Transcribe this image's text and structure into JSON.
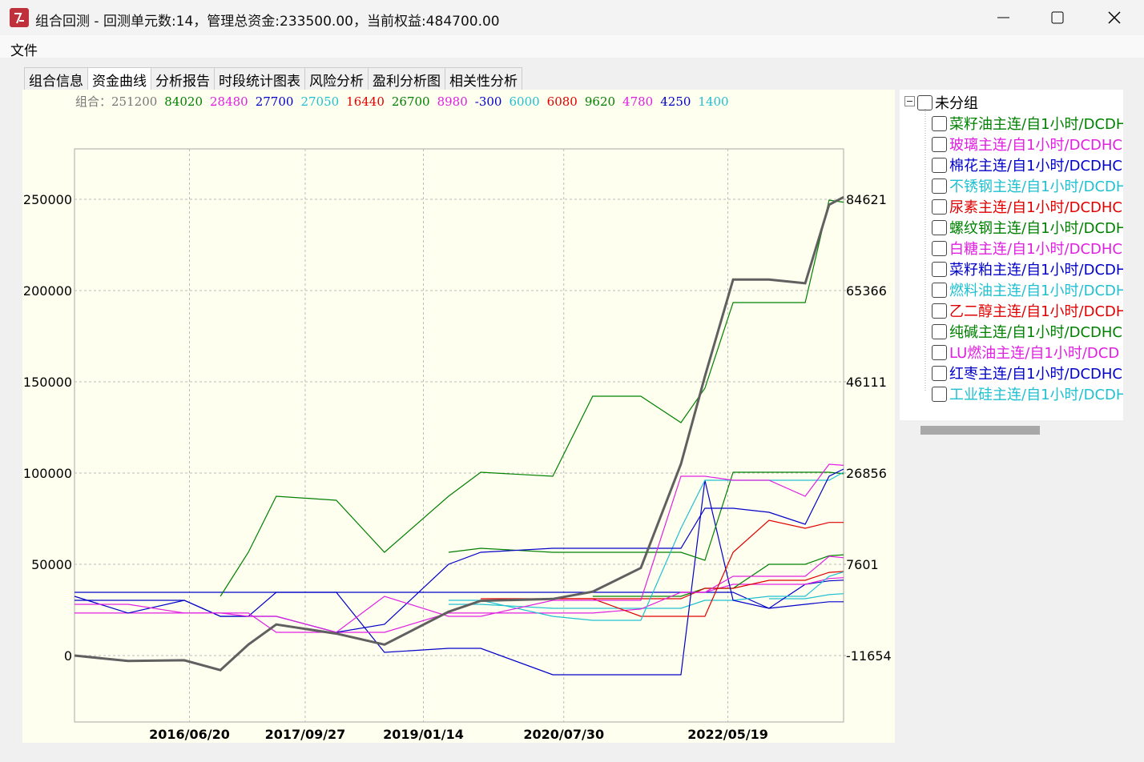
{
  "window": {
    "title": "组合回测 - 回测单元数:14，管理总资金:233500.00，当前权益:484700.00"
  },
  "menu": [
    "文件"
  ],
  "tabs": [
    "组合信息",
    "资金曲线",
    "分析报告",
    "时段统计图表",
    "风险分析",
    "盈利分析图",
    "相关性分析"
  ],
  "tree": {
    "root": "未分组"
  },
  "chart_data": {
    "type": "line",
    "summary_label": "组合：",
    "summary_values": [
      251200,
      84020,
      28480,
      27700,
      27050,
      16440,
      26700,
      8980,
      -300,
      6000,
      6080,
      9620,
      4780,
      4250,
      1400
    ],
    "x": [
      "2015/03/17",
      "2015/10/18",
      "2016/05/30",
      "2016/10/22",
      "2017/02/11",
      "2017/06/03",
      "2018/01/30",
      "2018/08/11",
      "2019/04/25",
      "2019/09/01",
      "2020/06/16",
      "2020/11/23",
      "2021/06/04",
      "2021/11/12",
      "2022/02/16",
      "2022/06/09",
      "2022/10/31",
      "2023/03/25",
      "2023/06/29",
      "2023/08/26"
    ],
    "xlim": [
      "2015/03/17",
      "2023/08/26"
    ],
    "xticks": [
      "2016/06/20",
      "2017/09/27",
      "2019/01/14",
      "2020/07/30",
      "2022/05/19"
    ],
    "ylim": [
      -36404,
      277632
    ],
    "yticks": [
      0,
      50000,
      100000,
      150000,
      200000,
      250000
    ],
    "y2lim": [
      -25673,
      95265
    ],
    "y2ticks": [
      -11654,
      7601,
      26856,
      46111,
      65366,
      84621
    ],
    "grid": true,
    "series": [
      {
        "name": "组合",
        "color": "#606060",
        "values": [
          0,
          -3000,
          -2600,
          -8000,
          6000,
          17000,
          12000,
          6000,
          24000,
          30000,
          31000,
          35000,
          48000,
          105000,
          153000,
          206000,
          206000,
          204000,
          247000,
          251200
        ]
      },
      {
        "name": "菜籽油主连/自1小时/DCDH",
        "color": "#008000",
        "axis": "y2",
        "values": [
          null,
          null,
          null,
          846,
          10134,
          21957,
          21112,
          10134,
          21957,
          27024,
          26180,
          43070,
          43070,
          37496,
          44760,
          62832,
          62832,
          62832,
          84452,
          84020
        ]
      },
      {
        "name": "玻璃主连/自1小时/DCDHC",
        "color": "#e020e0",
        "axis": "y2",
        "values": [
          -845,
          -845,
          -2689,
          -2689,
          -3378,
          -3378,
          -6756,
          846,
          -3378,
          -3378,
          0,
          0,
          0,
          26180,
          26180,
          25335,
          25335,
          21957,
          28713,
          28480
        ]
      },
      {
        "name": "棉花主连/自1小时/DCDHC",
        "color": "#0000c8",
        "axis": "y2",
        "values": [
          846,
          -2689,
          0,
          -3378,
          -3378,
          -3378,
          -6756,
          -5067,
          7601,
          10134,
          10979,
          10979,
          10979,
          10979,
          19423,
          19423,
          18578,
          16044,
          26180,
          27700
        ]
      },
      {
        "name": "不锈钢主连/自1小时/DCDH",
        "color": "#20c0d0",
        "axis": "y2",
        "values": [
          null,
          null,
          null,
          null,
          null,
          null,
          null,
          null,
          0,
          0,
          -3378,
          -4223,
          -4223,
          15200,
          25335,
          25335,
          25335,
          25335,
          25335,
          27050
        ]
      },
      {
        "name": "尿素主连/自1小时/DCDHC",
        "color": "#e00000",
        "axis": "y2",
        "values": [
          null,
          null,
          null,
          null,
          null,
          null,
          null,
          null,
          null,
          338,
          338,
          338,
          -3378,
          -3378,
          -3378,
          10134,
          16888,
          15200,
          16440,
          16440
        ]
      },
      {
        "name": "螺纹钢主连/自1小时/DCDH",
        "color": "#008000",
        "axis": "y2",
        "values": [
          null,
          null,
          null,
          null,
          null,
          null,
          null,
          null,
          10134,
          10979,
          10134,
          10134,
          10134,
          10134,
          8445,
          27024,
          27024,
          27024,
          27024,
          26700
        ]
      },
      {
        "name": "白糖主连/自1小时/DCDHC",
        "color": "#e020e0",
        "axis": "y2",
        "values": [
          -2689,
          -2689,
          -2689,
          -2689,
          -2689,
          -6756,
          -6756,
          -6756,
          -2689,
          -2689,
          -2689,
          -2689,
          -1845,
          1689,
          1689,
          5067,
          5067,
          5067,
          9290,
          8980
        ]
      },
      {
        "name": "菜籽粕主连/自1小时/DCDH",
        "color": "#0000c8",
        "axis": "y2",
        "values": [
          0,
          0,
          0,
          -3378,
          -3378,
          1689,
          1689,
          -10979,
          -10133,
          -10133,
          -15708,
          -15708,
          -15708,
          -15708,
          25335,
          0,
          -1689,
          -845,
          -300,
          -300
        ]
      },
      {
        "name": "燃料油主连/自1小时/DCDH",
        "color": "#20c0d0",
        "axis": "y2",
        "values": [
          null,
          null,
          null,
          null,
          null,
          null,
          null,
          null,
          -845,
          -845,
          -1689,
          -1689,
          -1689,
          -1689,
          0,
          0,
          845,
          845,
          5067,
          6000
        ]
      },
      {
        "name": "乙二醇主连/自1小时/DCDH",
        "color": "#e00000",
        "axis": "y2",
        "values": [
          null,
          null,
          null,
          null,
          null,
          null,
          null,
          null,
          null,
          null,
          338,
          338,
          338,
          338,
          2533,
          2533,
          4222,
          4222,
          5900,
          6080
        ]
      },
      {
        "name": "纯碱主连/自1小时/DCDHC",
        "color": "#008000",
        "axis": "y2",
        "values": [
          null,
          null,
          null,
          null,
          null,
          null,
          null,
          null,
          null,
          null,
          null,
          846,
          846,
          846,
          2533,
          2533,
          7601,
          7601,
          9400,
          9620
        ]
      },
      {
        "name": "LU燃油主连/自1小时/DCD",
        "color": "#e020e0",
        "axis": "y2",
        "values": [
          null,
          null,
          null,
          null,
          null,
          null,
          null,
          null,
          null,
          null,
          null,
          null,
          null,
          1689,
          1689,
          3378,
          3378,
          3378,
          4600,
          4780
        ]
      },
      {
        "name": "红枣主连/自1小时/DCDHC",
        "color": "#0000c8",
        "axis": "y2",
        "values": [
          1689,
          1689,
          1689,
          1689,
          1689,
          1689,
          1689,
          1689,
          1689,
          1689,
          1689,
          1689,
          1689,
          1689,
          1689,
          1689,
          -1689,
          3378,
          4100,
          4250
        ]
      },
      {
        "name": "工业硅主连/自1小时/DCDH",
        "color": "#20c0d0",
        "axis": "y2",
        "values": [
          null,
          null,
          null,
          null,
          null,
          null,
          null,
          null,
          null,
          null,
          null,
          null,
          null,
          null,
          null,
          null,
          338,
          338,
          1200,
          1400
        ]
      }
    ]
  }
}
